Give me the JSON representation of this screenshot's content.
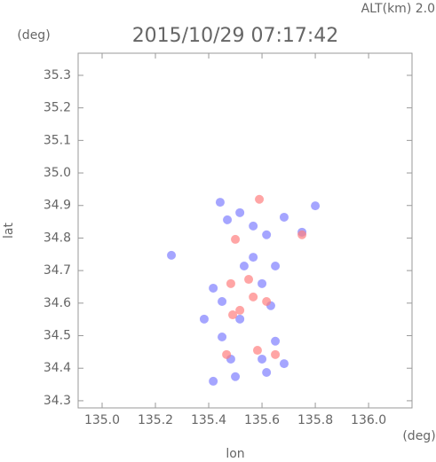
{
  "chart_data": {
    "type": "scatter",
    "title": "2015/10/29 07:17:42",
    "subtitle": "ALT(km) 2.0",
    "x_label": "lon",
    "y_label": "lat",
    "x_unit": "(deg)",
    "y_unit": "(deg)",
    "xlim": [
      134.91,
      136.163
    ],
    "ylim": [
      34.278,
      35.368
    ],
    "xticks": [
      {
        "value": 135,
        "label": "135.0"
      },
      135.2,
      135.4,
      135.6,
      135.8,
      {
        "value": 136,
        "label": "136.0"
      }
    ],
    "yticks": [
      35.3,
      35.2,
      35.1,
      {
        "value": 35,
        "label": "35.0"
      },
      34.9,
      34.8,
      34.7,
      34.6,
      34.5,
      34.4,
      34.3
    ],
    "series": [
      {
        "color": "#7f7fff",
        "x": [
          135.443,
          135.47,
          135.517,
          135.567,
          135.617,
          135.683,
          135.75,
          135.8,
          135.417,
          135.45,
          135.533,
          135.6,
          135.633,
          135.517,
          135.45,
          135.65,
          135.483,
          135.6,
          135.417,
          135.5,
          135.617,
          135.683,
          135.567,
          135.65,
          135.383,
          135.26
        ],
        "values": [
          34.91,
          34.856,
          34.878,
          34.837,
          34.81,
          34.864,
          34.818,
          34.899,
          34.646,
          34.605,
          34.714,
          34.66,
          34.592,
          34.551,
          34.496,
          34.483,
          34.428,
          34.428,
          34.36,
          34.374,
          34.387,
          34.414,
          34.741,
          34.714,
          34.551,
          34.747
        ]
      },
      {
        "color": "#ff7f7f",
        "x": [
          135.59,
          135.5,
          135.75,
          135.483,
          135.567,
          135.617,
          135.517,
          135.467,
          135.583,
          135.65,
          135.55,
          135.49
        ],
        "values": [
          34.919,
          34.796,
          34.81,
          34.66,
          34.619,
          34.605,
          34.578,
          34.442,
          34.455,
          34.442,
          34.673,
          34.564
        ]
      }
    ]
  }
}
